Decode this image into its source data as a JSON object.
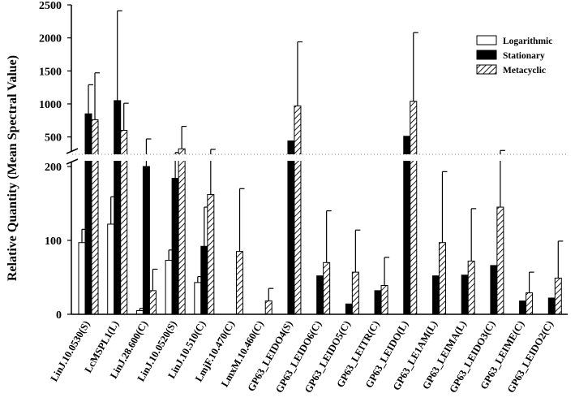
{
  "chart_data": {
    "type": "bar",
    "title": "",
    "xlabel": "",
    "ylabel": "Relative Quantity (Mean Spectral Value)",
    "axis_break": {
      "lower_range": [
        0,
        200
      ],
      "upper_range": [
        200,
        2500
      ]
    },
    "lower_ticks": [
      "0",
      "100",
      "200"
    ],
    "upper_ticks": [
      "500",
      "1000",
      "1500",
      "2000",
      "2500"
    ],
    "legend_position": "top-right",
    "categories": [
      "LinJ.10.0530(S)",
      "LcMSPL1(L)",
      "LinJ.28.600(C)",
      "LinJ.10.0520(S)",
      "LinJ.10.510(C)",
      "LmjF.10.470(C)",
      "LmxM.10.460(C)",
      "GP63_LEIDO4(S)",
      "GP63_LEIDO6(C)",
      "GP63_LEIDO5(C)",
      "GP63_LEITR(C)",
      "GP63_LEIDO(L)",
      "GP63_LE1AM(L)",
      "GP63_LEIMA(L)",
      "GP63_LEIDO3(C)",
      "GP63_LEIME(C)",
      "GP63_LEIDO2(C)"
    ],
    "series": [
      {
        "name": "Logarithmic",
        "fill": "white",
        "values": [
          97,
          122,
          5,
          73,
          43,
          0,
          0,
          0,
          0,
          0,
          0,
          0,
          0,
          0,
          0,
          0,
          0
        ],
        "errors": [
          18,
          37,
          3,
          14,
          8,
          0,
          0,
          0,
          0,
          0,
          0,
          0,
          0,
          0,
          0,
          0,
          0
        ]
      },
      {
        "name": "Stationary",
        "fill": "black",
        "values": [
          850,
          1050,
          200,
          184,
          92,
          0,
          0,
          440,
          52,
          14,
          32,
          510,
          52,
          53,
          66,
          18,
          22
        ],
        "errors": [
          440,
          1360,
          270,
          80,
          53,
          0,
          0,
          0,
          0,
          0,
          0,
          0,
          0,
          0,
          0,
          0,
          0
        ]
      },
      {
        "name": "Metacyclic",
        "fill": "hatched",
        "values": [
          760,
          600,
          32,
          320,
          162,
          85,
          18,
          970,
          70,
          57,
          39,
          1040,
          97,
          72,
          145,
          29,
          49
        ],
        "errors": [
          710,
          410,
          29,
          340,
          150,
          85,
          17,
          970,
          70,
          57,
          38,
          1040,
          96,
          71,
          150,
          28,
          50
        ]
      }
    ]
  }
}
